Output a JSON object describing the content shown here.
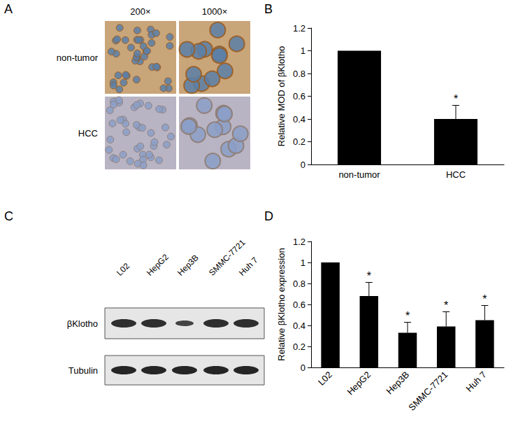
{
  "panel_a": {
    "label": "A",
    "columns": [
      "200×",
      "1000×"
    ],
    "rows": [
      "non-tumor",
      "HCC"
    ]
  },
  "panel_c": {
    "label": "C",
    "lanes": [
      "L02",
      "HepG2",
      "Hep3B",
      "SMMC-7721",
      "Huh 7"
    ],
    "rows": [
      "βKlotho",
      "Tubulin"
    ]
  },
  "chart_data": [
    {
      "panel": "B",
      "type": "bar",
      "categories": [
        "non-tumor",
        "HCC"
      ],
      "values": [
        1.0,
        0.4
      ],
      "errors": [
        0,
        0.12
      ],
      "significance": [
        null,
        "*"
      ],
      "ylabel": "Relative MOD of βKlotho",
      "color": "#000000",
      "ylim": [
        0,
        1.2
      ],
      "yticks": [
        0,
        0.2,
        0.4,
        0.6,
        0.8,
        1,
        1.2
      ],
      "grid": false
    },
    {
      "panel": "D",
      "type": "bar",
      "categories": [
        "L02",
        "HepG2",
        "Hep3B",
        "SMMC-7721",
        "Huh 7"
      ],
      "values": [
        1.0,
        0.68,
        0.33,
        0.39,
        0.45
      ],
      "errors": [
        0,
        0.13,
        0.1,
        0.14,
        0.14
      ],
      "significance": [
        null,
        "*",
        "*",
        "*",
        "*"
      ],
      "ylabel": "Relative βKlotho expression",
      "color": "#000000",
      "ylim": [
        0,
        1.2
      ],
      "yticks": [
        0,
        0.2,
        0.4,
        0.6,
        0.8,
        1,
        1.2
      ],
      "grid": false
    }
  ]
}
